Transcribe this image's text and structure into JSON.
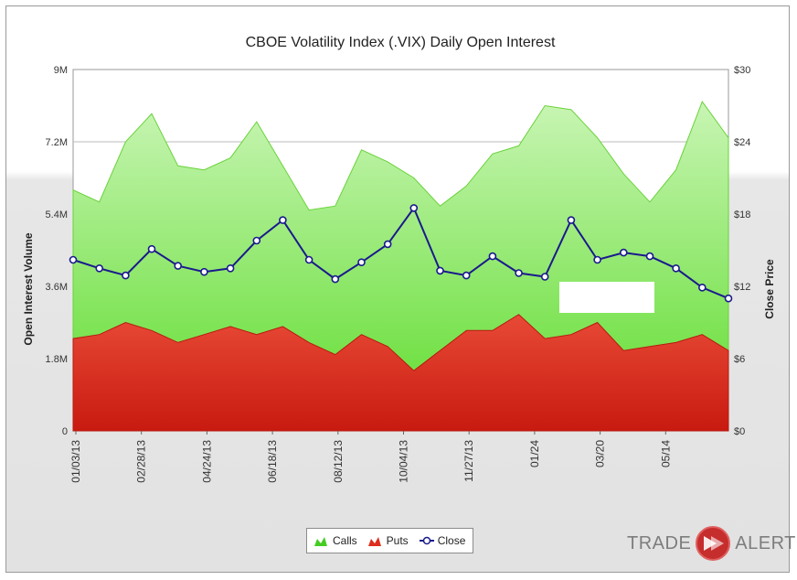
{
  "chart_data": {
    "type": "area",
    "title": "CBOE Volatility Index (.VIX) Daily Open Interest",
    "ylabel_left": "Open Interest Volume",
    "ylabel_right": "Close Price",
    "y_left_ticks": [
      "0",
      "1.8M",
      "3.6M",
      "5.4M",
      "7.2M",
      "9M"
    ],
    "y_left_range": [
      0,
      9000000
    ],
    "y_right_ticks": [
      "$0",
      "$6",
      "$12",
      "$18",
      "$24",
      "$30"
    ],
    "y_right_range": [
      0,
      30
    ],
    "x_tick_labels": [
      "01/03/13",
      "02/28/13",
      "04/24/13",
      "06/18/13",
      "08/12/13",
      "10/04/13",
      "11/27/13",
      "01/24",
      "03/20",
      "05/14"
    ],
    "x_dates": [
      "2013-01-03",
      "2013-01-24",
      "2013-02-14",
      "2013-03-07",
      "2013-03-28",
      "2013-04-18",
      "2013-05-09",
      "2013-05-30",
      "2013-06-20",
      "2013-07-11",
      "2013-08-01",
      "2013-08-22",
      "2013-09-12",
      "2013-10-03",
      "2013-10-24",
      "2013-11-14",
      "2013-12-05",
      "2013-12-26",
      "2014-01-16",
      "2014-02-06",
      "2014-02-27",
      "2014-03-20",
      "2014-04-10",
      "2014-05-01",
      "2014-05-22",
      "2014-06-12"
    ],
    "series": [
      {
        "name": "Calls",
        "color": "#66dd33",
        "kind": "area-stacked",
        "values": [
          3700000,
          3300000,
          4500000,
          5400000,
          4400000,
          4100000,
          4200000,
          5300000,
          4000000,
          3300000,
          3700000,
          4600000,
          4600000,
          4800000,
          3600000,
          3600000,
          4400000,
          4200000,
          5800000,
          5600000,
          4600000,
          4400000,
          3600000,
          4300000,
          5800000,
          5300000
        ]
      },
      {
        "name": "Puts",
        "color": "#dd2e1e",
        "kind": "area",
        "values": [
          2300000,
          2400000,
          2700000,
          2500000,
          2200000,
          2400000,
          2600000,
          2400000,
          2600000,
          2200000,
          1900000,
          2400000,
          2100000,
          1500000,
          2000000,
          2500000,
          2500000,
          2900000,
          2300000,
          2400000,
          2700000,
          2000000,
          2100000,
          2200000,
          2400000,
          2000000
        ]
      },
      {
        "name": "Close",
        "color": "#1a1a8c",
        "kind": "line",
        "axis": "right",
        "values": [
          14.2,
          13.5,
          12.9,
          15.1,
          13.7,
          13.2,
          13.5,
          15.8,
          17.5,
          14.2,
          12.6,
          14.0,
          15.5,
          18.5,
          13.3,
          12.9,
          14.5,
          13.1,
          12.8,
          17.5,
          14.2,
          14.8,
          14.5,
          13.5,
          11.9,
          11.0
        ]
      }
    ],
    "legend": "bottom-center",
    "grid": true
  },
  "legend_labels": {
    "calls": "Calls",
    "puts": "Puts",
    "close": "Close"
  },
  "brand": {
    "word1": "TRADE",
    "word2": "ALERT"
  }
}
